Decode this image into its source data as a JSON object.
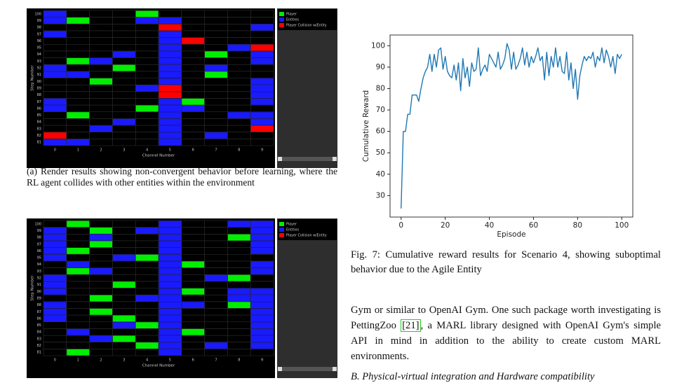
{
  "figures": [
    {
      "caption": "(a) Render results showing non-convergent behavior before learning, where the RL agent collides with other entities within the environment",
      "x_label": "Channel Number",
      "y_label": "Step Number",
      "channels": [
        0,
        1,
        2,
        3,
        4,
        5,
        6,
        7,
        8,
        9
      ],
      "steps": [
        100,
        99,
        98,
        97,
        96,
        95,
        94,
        93,
        92,
        91,
        90,
        89,
        88,
        87,
        86,
        85,
        84,
        83,
        82,
        81
      ],
      "legend": [
        {
          "name": "Player",
          "color": "#00ee00"
        },
        {
          "name": "Entities",
          "color": "#1a1aff"
        },
        {
          "name": "Player Collision w/Entity",
          "color": "#ff0000"
        }
      ],
      "rows": [
        "1...0.....",
        "10..11....",
        ".....2...1",
        "1....1....",
        ".....12...",
        ".....1..12",
        "...1.1.0.1",
        ".01..1...1",
        "1..0.1.1..",
        "11...1.0..",
        "..0..1...1",
        "....12...1",
        ".....2...1",
        "1....10..1",
        "1...011...",
        ".0...1..11",
        "...1.1...1",
        "..1..1...2",
        "2....1.1..",
        "11...1...."
      ]
    },
    {
      "x_label": "Channel Number",
      "y_label": "Step Number",
      "channels": [
        0,
        1,
        2,
        3,
        4,
        5,
        6,
        7,
        8,
        9
      ],
      "steps": [
        100,
        99,
        98,
        97,
        96,
        95,
        94,
        93,
        92,
        91,
        90,
        89,
        88,
        87,
        86,
        85,
        84,
        83,
        82,
        81
      ],
      "legend": [
        {
          "name": "Player",
          "color": "#00ee00"
        },
        {
          "name": "Entities",
          "color": "#1a1aff"
        },
        {
          "name": "Player Collision w/Entity",
          "color": "#ff0000"
        }
      ],
      "rows": [
        ".0...1..11",
        "1.0.11...1",
        "1.1..1..01",
        "1.0..1...1",
        "10...1...1",
        "1..101....",
        ".1...10..1",
        ".01..1...1",
        "1....1.10.",
        "1..0.1....",
        "1....10.11",
        "..0.11..11",
        "1....11.01",
        "1.0..1...1",
        "1..0.1...1",
        "...101...1",
        ".1...10..1",
        "..10.1...1",
        "....01.1.1",
        ".0...1...."
      ]
    }
  ],
  "chart_data": {
    "type": "line",
    "x_label": "Episode",
    "y_label": "Cumulative Reward",
    "x": [
      0,
      1,
      2,
      3,
      4,
      5,
      6,
      7,
      8,
      9,
      10,
      11,
      12,
      13,
      14,
      15,
      16,
      17,
      18,
      19,
      20,
      21,
      22,
      23,
      24,
      25,
      26,
      27,
      28,
      29,
      30,
      31,
      32,
      33,
      34,
      35,
      36,
      37,
      38,
      39,
      40,
      41,
      42,
      43,
      44,
      45,
      46,
      47,
      48,
      49,
      50,
      51,
      52,
      53,
      54,
      55,
      56,
      57,
      58,
      59,
      60,
      61,
      62,
      63,
      64,
      65,
      66,
      67,
      68,
      69,
      70,
      71,
      72,
      73,
      74,
      75,
      76,
      77,
      78,
      79,
      80,
      81,
      82,
      83,
      84,
      85,
      86,
      87,
      88,
      89,
      90,
      91,
      92,
      93,
      94,
      95,
      96,
      97,
      98,
      99,
      100
    ],
    "series": [
      {
        "name": "Cumulative Reward",
        "color": "#1f77b4",
        "values": [
          24,
          60,
          60,
          68,
          68,
          77,
          77,
          77,
          74,
          80,
          85,
          88,
          90,
          96,
          88,
          96,
          90,
          98,
          99,
          89,
          95,
          88,
          86,
          85,
          91,
          84,
          92,
          79,
          94,
          85,
          90,
          81,
          92,
          88,
          89,
          99,
          86,
          89,
          91,
          88,
          96,
          94,
          92,
          90,
          97,
          89,
          91,
          94,
          101,
          98,
          89,
          97,
          89,
          91,
          94,
          99,
          91,
          97,
          90,
          95,
          92,
          95,
          99,
          93,
          95,
          84,
          97,
          86,
          95,
          90,
          99,
          90,
          95,
          88,
          87,
          97,
          84,
          92,
          80,
          89,
          75,
          86,
          91,
          95,
          93,
          95,
          94,
          97,
          90,
          95,
          93,
          99,
          92,
          98,
          95,
          90,
          95,
          87,
          96,
          94,
          96
        ]
      }
    ],
    "xlim": [
      -5,
      105
    ],
    "xticks": [
      0,
      20,
      40,
      60,
      80,
      100
    ],
    "ylim": [
      20,
      105
    ],
    "yticks": [
      30,
      40,
      50,
      60,
      70,
      80,
      90,
      100
    ]
  },
  "fig7_caption": "Fig. 7: Cumulative reward results for Scenario 4, showing suboptimal behavior due to the Agile Entity",
  "paragraph": {
    "before": "Gym or similar to OpenAI Gym. One such package worth investigating is PettingZoo ",
    "citation": "[21]",
    "after": ", a MARL library designed with OpenAI Gym's simple API in mind in addition to the ability to create custom MARL environments."
  },
  "heading": "B. Physical-virtual integration and Hardware compatibility"
}
